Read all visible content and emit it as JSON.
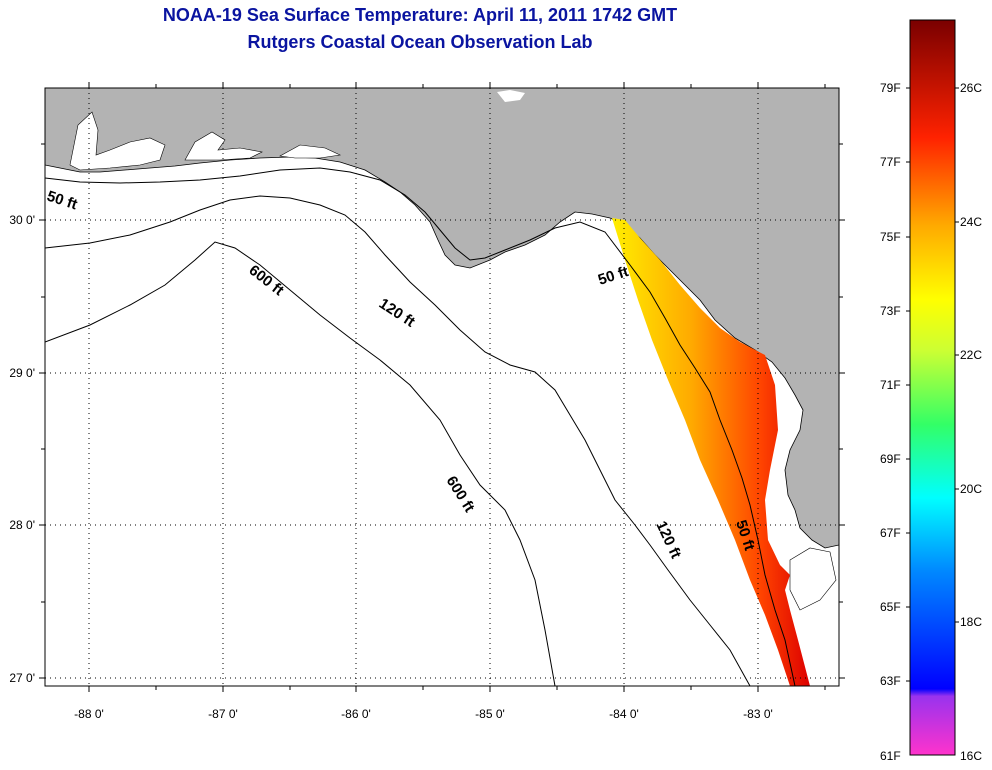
{
  "header": {
    "title": "NOAA-19 Sea Surface Temperature:  April 11, 2011 1742 GMT",
    "subtitle": "Rutgers Coastal Ocean Observation Lab"
  },
  "axes": {
    "lon_ticks": [
      "-88 0'",
      "-87 0'",
      "-86 0'",
      "-85 0'",
      "-84 0'",
      "-83 0'"
    ],
    "lat_ticks": [
      "30 0'",
      "29 0'",
      "28 0'",
      "27 0'"
    ]
  },
  "contour_labels": [
    "50 ft",
    "600 ft",
    "120 ft",
    "50 ft",
    "600 ft",
    "120 ft",
    "50 ft"
  ],
  "colorbar": {
    "fahrenheit": [
      "79F",
      "77F",
      "75F",
      "73F",
      "71F",
      "69F",
      "67F",
      "65F",
      "63F",
      "61F"
    ],
    "celsius": [
      "26C",
      "24C",
      "22C",
      "20C",
      "18C",
      "16C"
    ],
    "colors": [
      "#ff33cc",
      "#8833ee",
      "#0000ff",
      "#00aaff",
      "#00ffff",
      "#33ff66",
      "#ccff33",
      "#ffff00",
      "#ffaa00",
      "#ff5500",
      "#ff0000",
      "#aa0000",
      "#880000"
    ]
  },
  "colors": {
    "land": "#b3b3b3",
    "ocean": "#ffffff",
    "title": "#0a14a0"
  }
}
